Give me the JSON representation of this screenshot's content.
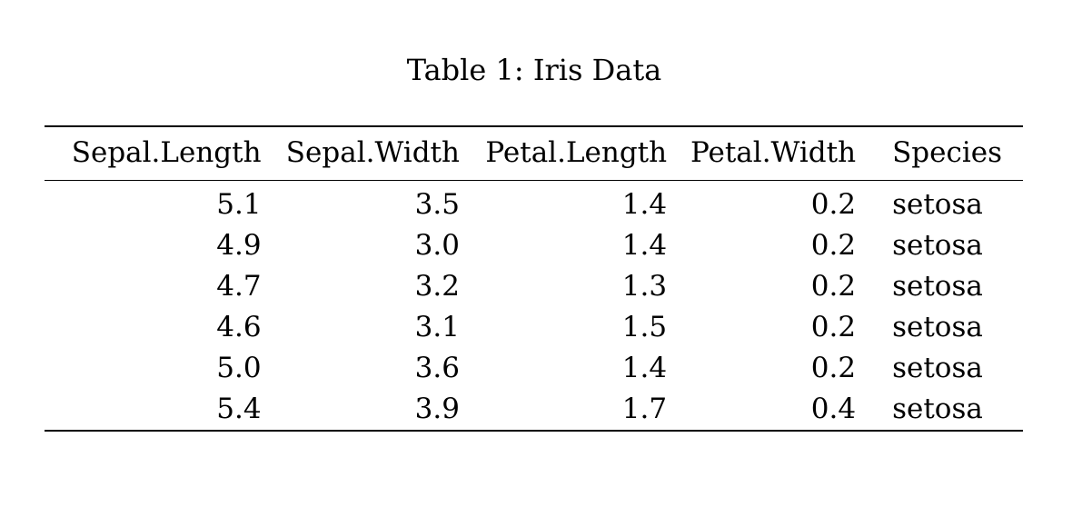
{
  "caption": "Table 1: Iris Data",
  "columns": [
    "Sepal.Length",
    "Sepal.Width",
    "Petal.Length",
    "Petal.Width",
    "Species"
  ],
  "rows": [
    [
      "5.1",
      "3.5",
      "1.4",
      "0.2",
      "setosa"
    ],
    [
      "4.9",
      "3.0",
      "1.4",
      "0.2",
      "setosa"
    ],
    [
      "4.7",
      "3.2",
      "1.3",
      "0.2",
      "setosa"
    ],
    [
      "4.6",
      "3.1",
      "1.5",
      "0.2",
      "setosa"
    ],
    [
      "5.0",
      "3.6",
      "1.4",
      "0.2",
      "setosa"
    ],
    [
      "5.4",
      "3.9",
      "1.7",
      "0.4",
      "setosa"
    ]
  ]
}
